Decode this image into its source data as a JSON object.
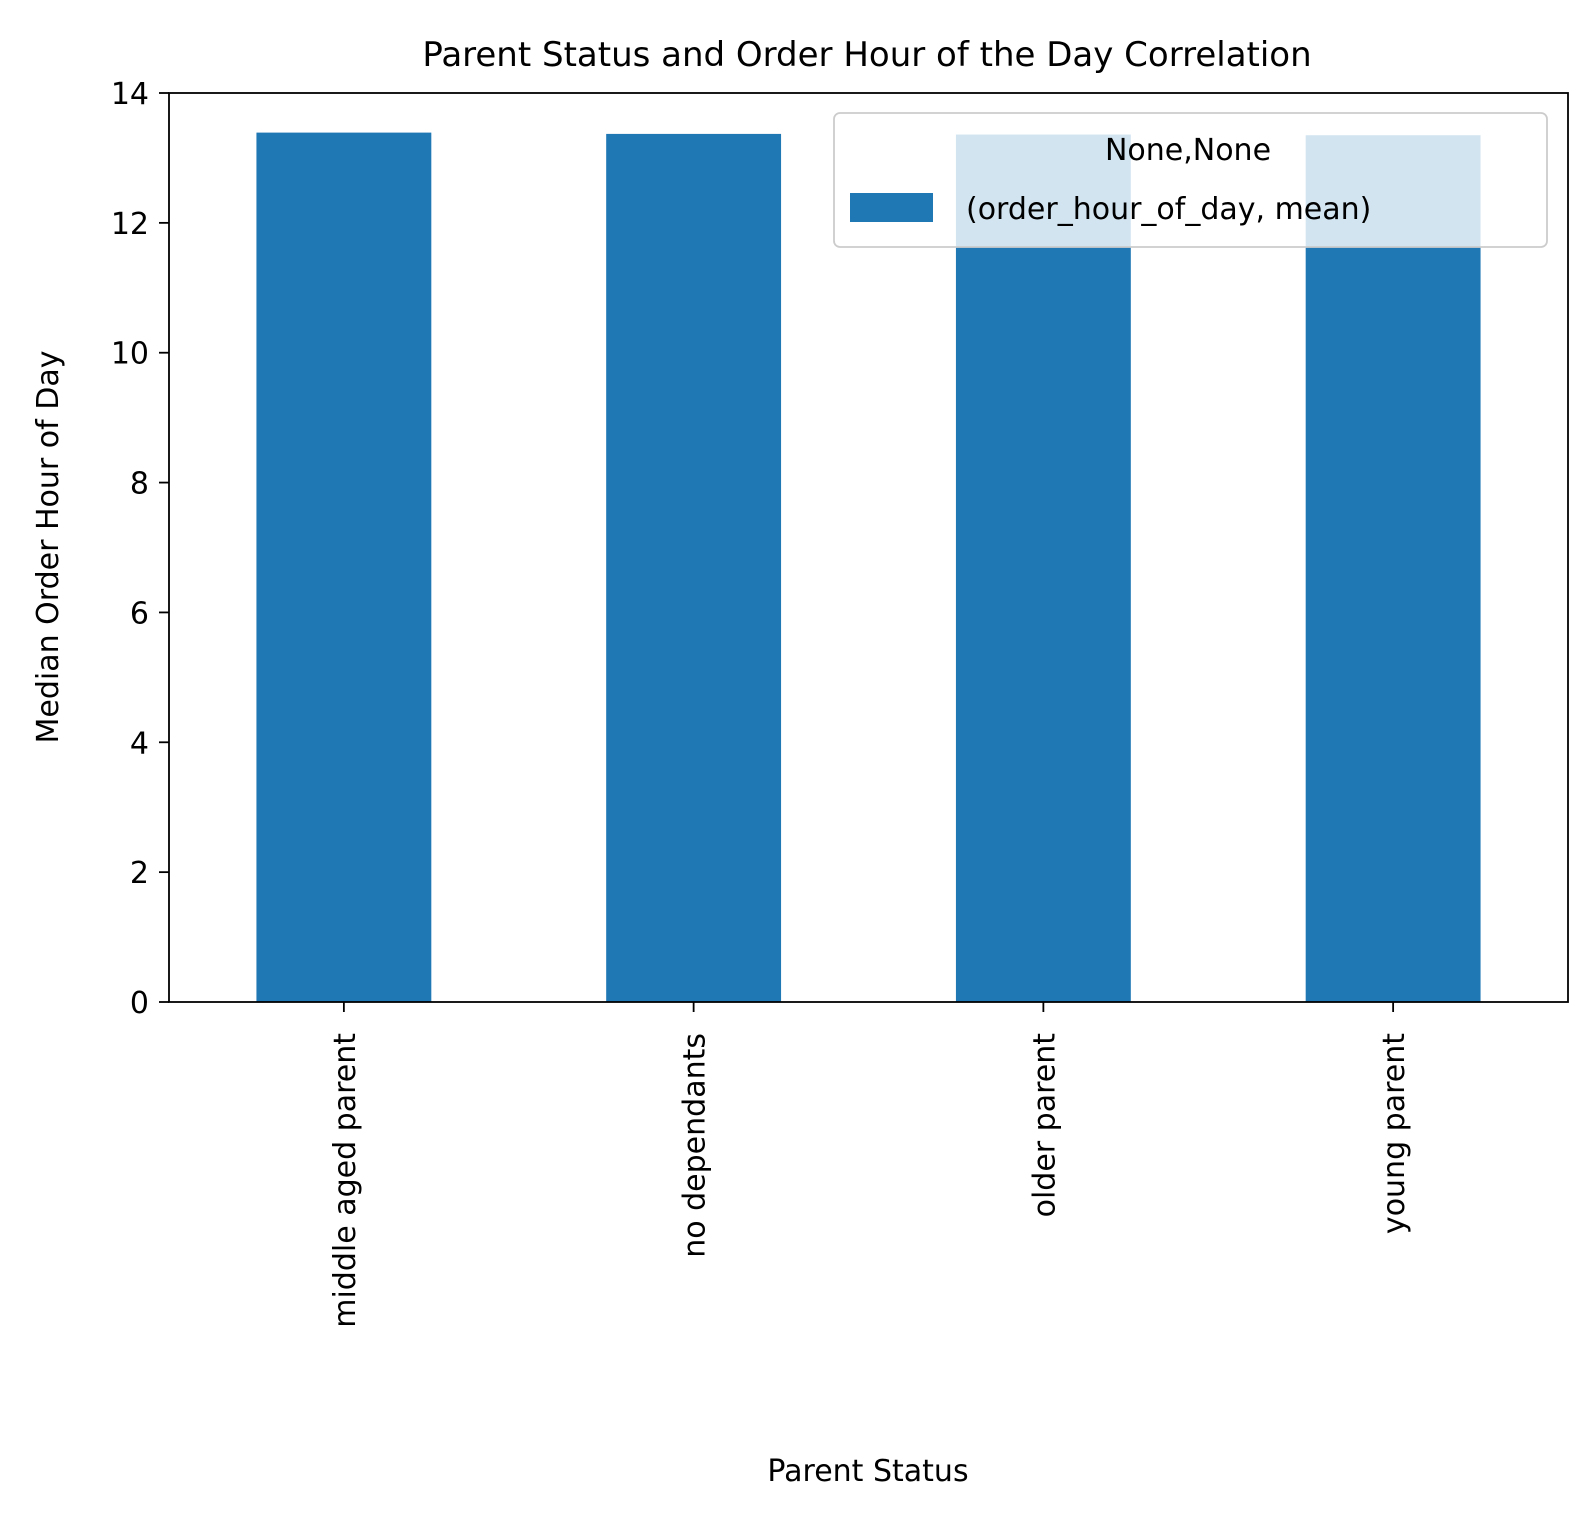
{
  "chart_data": {
    "type": "bar",
    "title": "Parent Status and Order Hour of the Day Correlation",
    "xlabel": "Parent Status",
    "ylabel": "Median Order Hour of Day",
    "categories": [
      "middle aged parent",
      "no dependants",
      "older parent",
      "young parent"
    ],
    "series": [
      {
        "name": "(order_hour_of_day, mean)",
        "values": [
          13.39,
          13.37,
          13.36,
          13.35
        ]
      }
    ],
    "legend_title": "None,None",
    "legend_position": "top-right",
    "ylim": [
      0,
      14
    ],
    "yticks": [
      0,
      2,
      4,
      6,
      8,
      10,
      12,
      14
    ],
    "grid": false,
    "bar_color": "#1f77b4"
  }
}
